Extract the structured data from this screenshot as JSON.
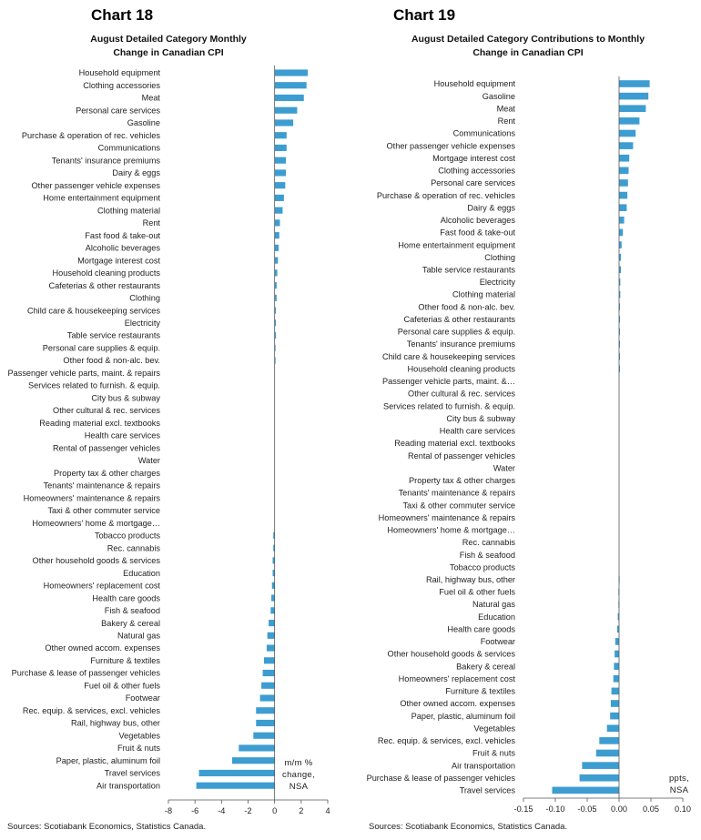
{
  "chart_data": [
    {
      "id": "chart18",
      "type": "bar",
      "orientation": "horizontal",
      "chart_number": "Chart 18",
      "title": "August Detailed Category Monthly Change in Canadian CPI",
      "title_lines": [
        "August Detailed Category Monthly",
        "Change in Canadian CPI"
      ],
      "unit_note": [
        "m/m %",
        "change,",
        "NSA"
      ],
      "source": "Sources: Scotiabank Economics, Statistics Canada.",
      "xlim": [
        -8,
        4
      ],
      "xticks": [
        -8,
        -6,
        -4,
        -2,
        0,
        2,
        4
      ],
      "xtick_labels": [
        "-8",
        "-6",
        "-4",
        "-2",
        "0",
        "2",
        "4"
      ],
      "grid": false,
      "bar_color": "#3d9dd1",
      "categories": [
        "Household equipment",
        "Clothing accessories",
        "Meat",
        "Personal care services",
        "Gasoline",
        "Purchase & operation of rec. vehicles",
        "Communications",
        "Tenants' insurance premiums",
        "Dairy & eggs",
        "Other passenger vehicle expenses",
        "Home entertainment equipment",
        "Clothing material",
        "Rent",
        "Fast food & take-out",
        "Alcoholic beverages",
        "Mortgage interest cost",
        "Household cleaning products",
        "Cafeterias & other restaurants",
        "Clothing",
        "Child care & housekeeping services",
        "Electricity",
        "Table service restaurants",
        "Personal care supplies & equip.",
        "Other food & non-alc. bev.",
        "Passenger vehicle parts, maint. & repairs",
        "Services related to furnish. & equip.",
        "City bus & subway",
        "Other cultural & rec. services",
        "Reading material excl. textbooks",
        "Health care services",
        "Rental of passenger vehicles",
        "Water",
        "Property tax & other charges",
        "Tenants' maintenance & repairs",
        "Homeowners' maintenance & repairs",
        "Taxi & other commuter service",
        "Homeowners' home & mortgage…",
        "Tobacco products",
        "Rec. cannabis",
        "Other household goods & services",
        "Education",
        "Homeowners' replacement cost",
        "Health care goods",
        "Fish & seafood",
        "Bakery & cereal",
        "Natural gas",
        "Other owned accom. expenses",
        "Furniture & textiles",
        "Purchase & lease of passenger vehicles",
        "Fuel oil & other fuels",
        "Footwear",
        "Rec. equip. & services, excl. vehicles",
        "Rail, highway bus, other",
        "Vegetables",
        "Fruit & nuts",
        "Paper, plastic, aluminum foil",
        "Travel services",
        "Air transportation"
      ],
      "values": [
        2.5,
        2.4,
        2.2,
        1.7,
        1.4,
        0.9,
        0.9,
        0.85,
        0.85,
        0.8,
        0.7,
        0.6,
        0.4,
        0.35,
        0.3,
        0.25,
        0.2,
        0.15,
        0.15,
        0.1,
        0.1,
        0.1,
        0.05,
        0.05,
        0,
        0,
        0,
        0,
        0,
        0,
        0,
        0,
        0,
        0,
        0,
        0,
        0,
        -0.1,
        -0.1,
        -0.15,
        -0.15,
        -0.2,
        -0.25,
        -0.3,
        -0.45,
        -0.55,
        -0.6,
        -0.8,
        -0.9,
        -1.0,
        -1.1,
        -1.4,
        -1.4,
        -1.6,
        -2.7,
        -3.2,
        -5.7,
        -5.9
      ]
    },
    {
      "id": "chart19",
      "type": "bar",
      "orientation": "horizontal",
      "chart_number": "Chart 19",
      "title": "August Detailed Category Contributions to Monthly Change in Canadian CPI",
      "title_lines": [
        "August Detailed Category Contributions to Monthly",
        "Change in Canadian CPI"
      ],
      "unit_note": [
        "ppts,",
        "NSA"
      ],
      "source": "Sources: Scotiabank Economics, Statistics Canada.",
      "xlim": [
        -0.15,
        0.1
      ],
      "xticks": [
        -0.15,
        -0.1,
        -0.05,
        0,
        0.05,
        0.1
      ],
      "xtick_labels": [
        "-0.15",
        "-0.10",
        "-0.05",
        "0.00",
        "0.05",
        "0.10"
      ],
      "grid": false,
      "bar_color": "#3d9dd1",
      "categories": [
        "Household equipment",
        "Gasoline",
        "Meat",
        "Rent",
        "Communications",
        "Other passenger vehicle expenses",
        "Mortgage interest cost",
        "Clothing accessories",
        "Personal care services",
        "Purchase & operation of rec. vehicles",
        "Dairy & eggs",
        "Alcoholic beverages",
        "Fast food & take-out",
        "Home entertainment equipment",
        "Clothing",
        "Table service restaurants",
        "Electricity",
        "Clothing material",
        "Other food & non-alc. bev.",
        "Cafeterias & other restaurants",
        "Personal care supplies & equip.",
        "Tenants' insurance premiums",
        "Child care & housekeeping services",
        "Household cleaning products",
        "Passenger vehicle parts, maint. &…",
        "Other cultural & rec. services",
        "Services related to furnish. & equip.",
        "City bus & subway",
        "Health care services",
        "Reading material excl. textbooks",
        "Rental of passenger vehicles",
        "Water",
        "Property tax & other charges",
        "Tenants' maintenance & repairs",
        "Taxi & other commuter service",
        "Homeowners' maintenance & repairs",
        "Homeowners' home & mortgage…",
        "Rec. cannabis",
        "Fish & seafood",
        "Tobacco products",
        "Rail, highway bus, other",
        "Fuel oil & other fuels",
        "Natural gas",
        "Education",
        "Health care goods",
        "Footwear",
        "Other household goods & services",
        "Bakery & cereal",
        "Homeowners' replacement cost",
        "Furniture & textiles",
        "Other owned accom. expenses",
        "Paper, plastic, aluminum foil",
        "Vegetables",
        "Rec. equip. & services, excl. vehicles",
        "Fruit & nuts",
        "Air transportation",
        "Purchase & lease of passenger vehicles",
        "Travel services"
      ],
      "values": [
        0.048,
        0.046,
        0.042,
        0.032,
        0.026,
        0.022,
        0.016,
        0.015,
        0.014,
        0.013,
        0.012,
        0.008,
        0.006,
        0.004,
        0.003,
        0.003,
        0.002,
        0.002,
        0.001,
        0.001,
        0.001,
        0.001,
        0.001,
        0.0005,
        0,
        0,
        0,
        0,
        0,
        0,
        0,
        0,
        0,
        0,
        0,
        0,
        0,
        0,
        0,
        0,
        -0.0005,
        -0.001,
        -0.001,
        -0.002,
        -0.003,
        -0.006,
        -0.007,
        -0.008,
        -0.009,
        -0.012,
        -0.013,
        -0.014,
        -0.019,
        -0.031,
        -0.036,
        -0.058,
        -0.062,
        -0.105
      ]
    }
  ]
}
